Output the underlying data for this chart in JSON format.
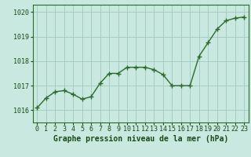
{
  "x": [
    0,
    1,
    2,
    3,
    4,
    5,
    6,
    7,
    8,
    9,
    10,
    11,
    12,
    13,
    14,
    15,
    16,
    17,
    18,
    19,
    20,
    21,
    22,
    23
  ],
  "y": [
    1016.1,
    1016.5,
    1016.75,
    1016.8,
    1016.65,
    1016.45,
    1016.55,
    1017.1,
    1017.5,
    1017.5,
    1017.75,
    1017.75,
    1017.75,
    1017.65,
    1017.45,
    1017.0,
    1017.0,
    1017.0,
    1018.2,
    1018.75,
    1019.3,
    1019.65,
    1019.75,
    1019.8
  ],
  "line_color": "#2d6a2d",
  "marker_color": "#2d6a2d",
  "bg_color": "#c8e8e0",
  "plot_bg_color": "#c8e8e0",
  "grid_color": "#a0c8bc",
  "xlabel": "Graphe pression niveau de la mer (hPa)",
  "xlabel_color": "#1a4a1a",
  "tick_label_color": "#1a4a1a",
  "ylim": [
    1015.5,
    1020.3
  ],
  "yticks": [
    1016,
    1017,
    1018,
    1019,
    1020
  ],
  "xticks": [
    0,
    1,
    2,
    3,
    4,
    5,
    6,
    7,
    8,
    9,
    10,
    11,
    12,
    13,
    14,
    15,
    16,
    17,
    18,
    19,
    20,
    21,
    22,
    23
  ],
  "axis_color": "#2d6a2d",
  "linewidth": 1.0,
  "markersize": 4.0,
  "tick_fontsize": 6.0,
  "xlabel_fontsize": 7.0
}
